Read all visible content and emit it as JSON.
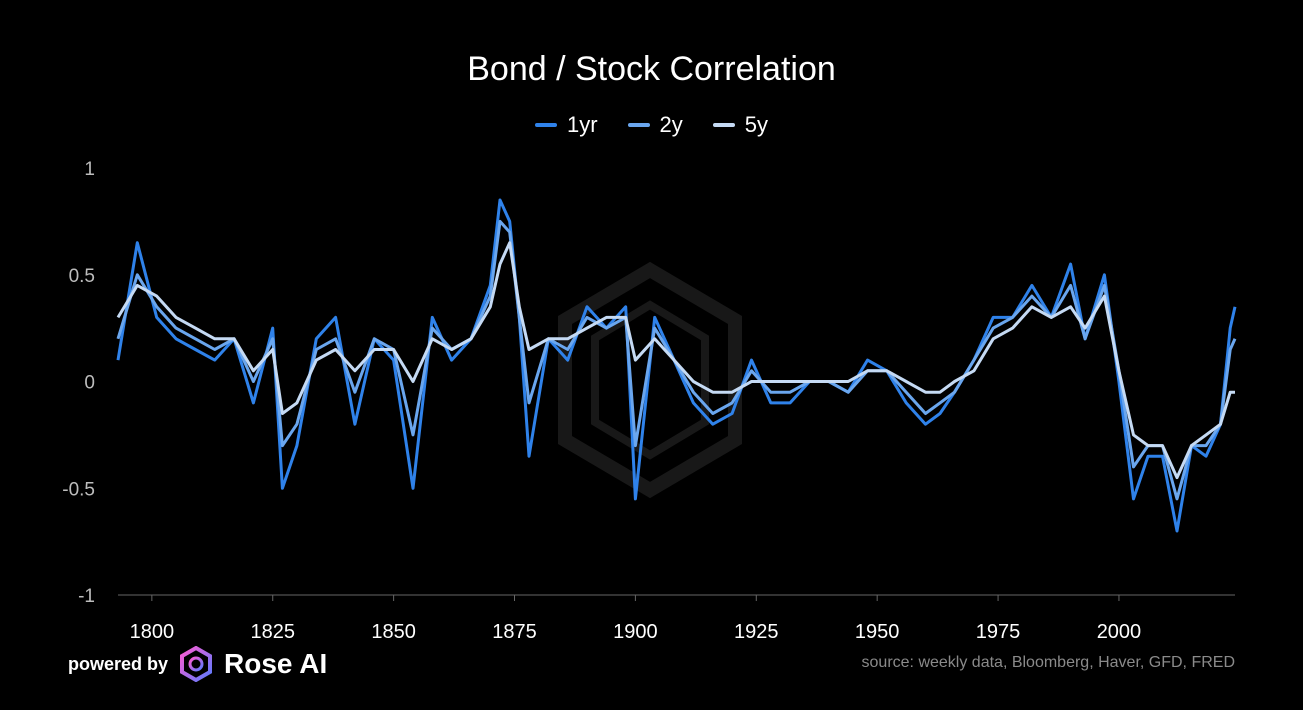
{
  "chart_data": {
    "type": "line",
    "title": "Bond / Stock Correlation",
    "xlim": [
      1793,
      2024
    ],
    "ylim": [
      -1,
      1
    ],
    "x_ticks": [
      1800,
      1825,
      1850,
      1875,
      1900,
      1925,
      1950,
      1975,
      2000
    ],
    "y_ticks": [
      1,
      0.5,
      0,
      -0.5,
      -1
    ],
    "legend_position": "top-center",
    "grid": false,
    "x": [
      1793,
      1797,
      1801,
      1805,
      1809,
      1813,
      1817,
      1821,
      1825,
      1827,
      1830,
      1834,
      1838,
      1842,
      1846,
      1850,
      1854,
      1858,
      1862,
      1866,
      1870,
      1872,
      1874,
      1876,
      1878,
      1882,
      1886,
      1890,
      1894,
      1898,
      1900,
      1904,
      1908,
      1912,
      1916,
      1920,
      1924,
      1928,
      1932,
      1936,
      1940,
      1944,
      1948,
      1952,
      1956,
      1960,
      1963,
      1966,
      1970,
      1974,
      1978,
      1982,
      1986,
      1990,
      1993,
      1997,
      2000,
      2003,
      2006,
      2009,
      2012,
      2015,
      2018,
      2021,
      2023,
      2024
    ],
    "series": [
      {
        "name": "1yr",
        "color": "#2f82ea",
        "values": [
          0.1,
          0.65,
          0.3,
          0.2,
          0.15,
          0.1,
          0.2,
          -0.1,
          0.25,
          -0.5,
          -0.3,
          0.2,
          0.3,
          -0.2,
          0.2,
          0.1,
          -0.5,
          0.3,
          0.1,
          0.2,
          0.45,
          0.85,
          0.75,
          0.3,
          -0.35,
          0.2,
          0.1,
          0.35,
          0.25,
          0.35,
          -0.55,
          0.3,
          0.1,
          -0.1,
          -0.2,
          -0.15,
          0.1,
          -0.1,
          -0.1,
          0.0,
          0.0,
          -0.05,
          0.1,
          0.05,
          -0.1,
          -0.2,
          -0.15,
          -0.05,
          0.1,
          0.3,
          0.3,
          0.45,
          0.3,
          0.55,
          0.2,
          0.5,
          0.0,
          -0.55,
          -0.35,
          -0.35,
          -0.7,
          -0.3,
          -0.35,
          -0.2,
          0.25,
          0.35
        ]
      },
      {
        "name": "2y",
        "color": "#6aa6ee",
        "values": [
          0.2,
          0.5,
          0.35,
          0.25,
          0.2,
          0.15,
          0.2,
          0.0,
          0.2,
          -0.3,
          -0.2,
          0.15,
          0.2,
          -0.05,
          0.2,
          0.15,
          -0.25,
          0.25,
          0.15,
          0.2,
          0.4,
          0.75,
          0.7,
          0.3,
          -0.1,
          0.2,
          0.15,
          0.3,
          0.25,
          0.3,
          -0.3,
          0.25,
          0.1,
          -0.05,
          -0.15,
          -0.1,
          0.05,
          -0.05,
          -0.05,
          0.0,
          0.0,
          -0.05,
          0.05,
          0.05,
          -0.05,
          -0.15,
          -0.1,
          -0.05,
          0.1,
          0.25,
          0.3,
          0.4,
          0.3,
          0.45,
          0.2,
          0.45,
          0.05,
          -0.4,
          -0.3,
          -0.3,
          -0.55,
          -0.3,
          -0.3,
          -0.2,
          0.15,
          0.2
        ]
      },
      {
        "name": "5y",
        "color": "#c5daf4",
        "values": [
          0.3,
          0.45,
          0.4,
          0.3,
          0.25,
          0.2,
          0.2,
          0.05,
          0.15,
          -0.15,
          -0.1,
          0.1,
          0.15,
          0.05,
          0.15,
          0.15,
          0.0,
          0.2,
          0.15,
          0.2,
          0.35,
          0.55,
          0.65,
          0.35,
          0.15,
          0.2,
          0.2,
          0.25,
          0.3,
          0.3,
          0.1,
          0.2,
          0.1,
          0.0,
          -0.05,
          -0.05,
          0.0,
          0.0,
          0.0,
          0.0,
          0.0,
          0.0,
          0.05,
          0.05,
          0.0,
          -0.05,
          -0.05,
          0.0,
          0.05,
          0.2,
          0.25,
          0.35,
          0.3,
          0.35,
          0.25,
          0.4,
          0.05,
          -0.25,
          -0.3,
          -0.3,
          -0.45,
          -0.3,
          -0.25,
          -0.2,
          -0.05,
          -0.05
        ]
      }
    ]
  },
  "footer": {
    "powered_by": "powered by",
    "brand": "Rose AI",
    "source": "source: weekly data, Bloomberg, Haver, GFD, FRED"
  }
}
